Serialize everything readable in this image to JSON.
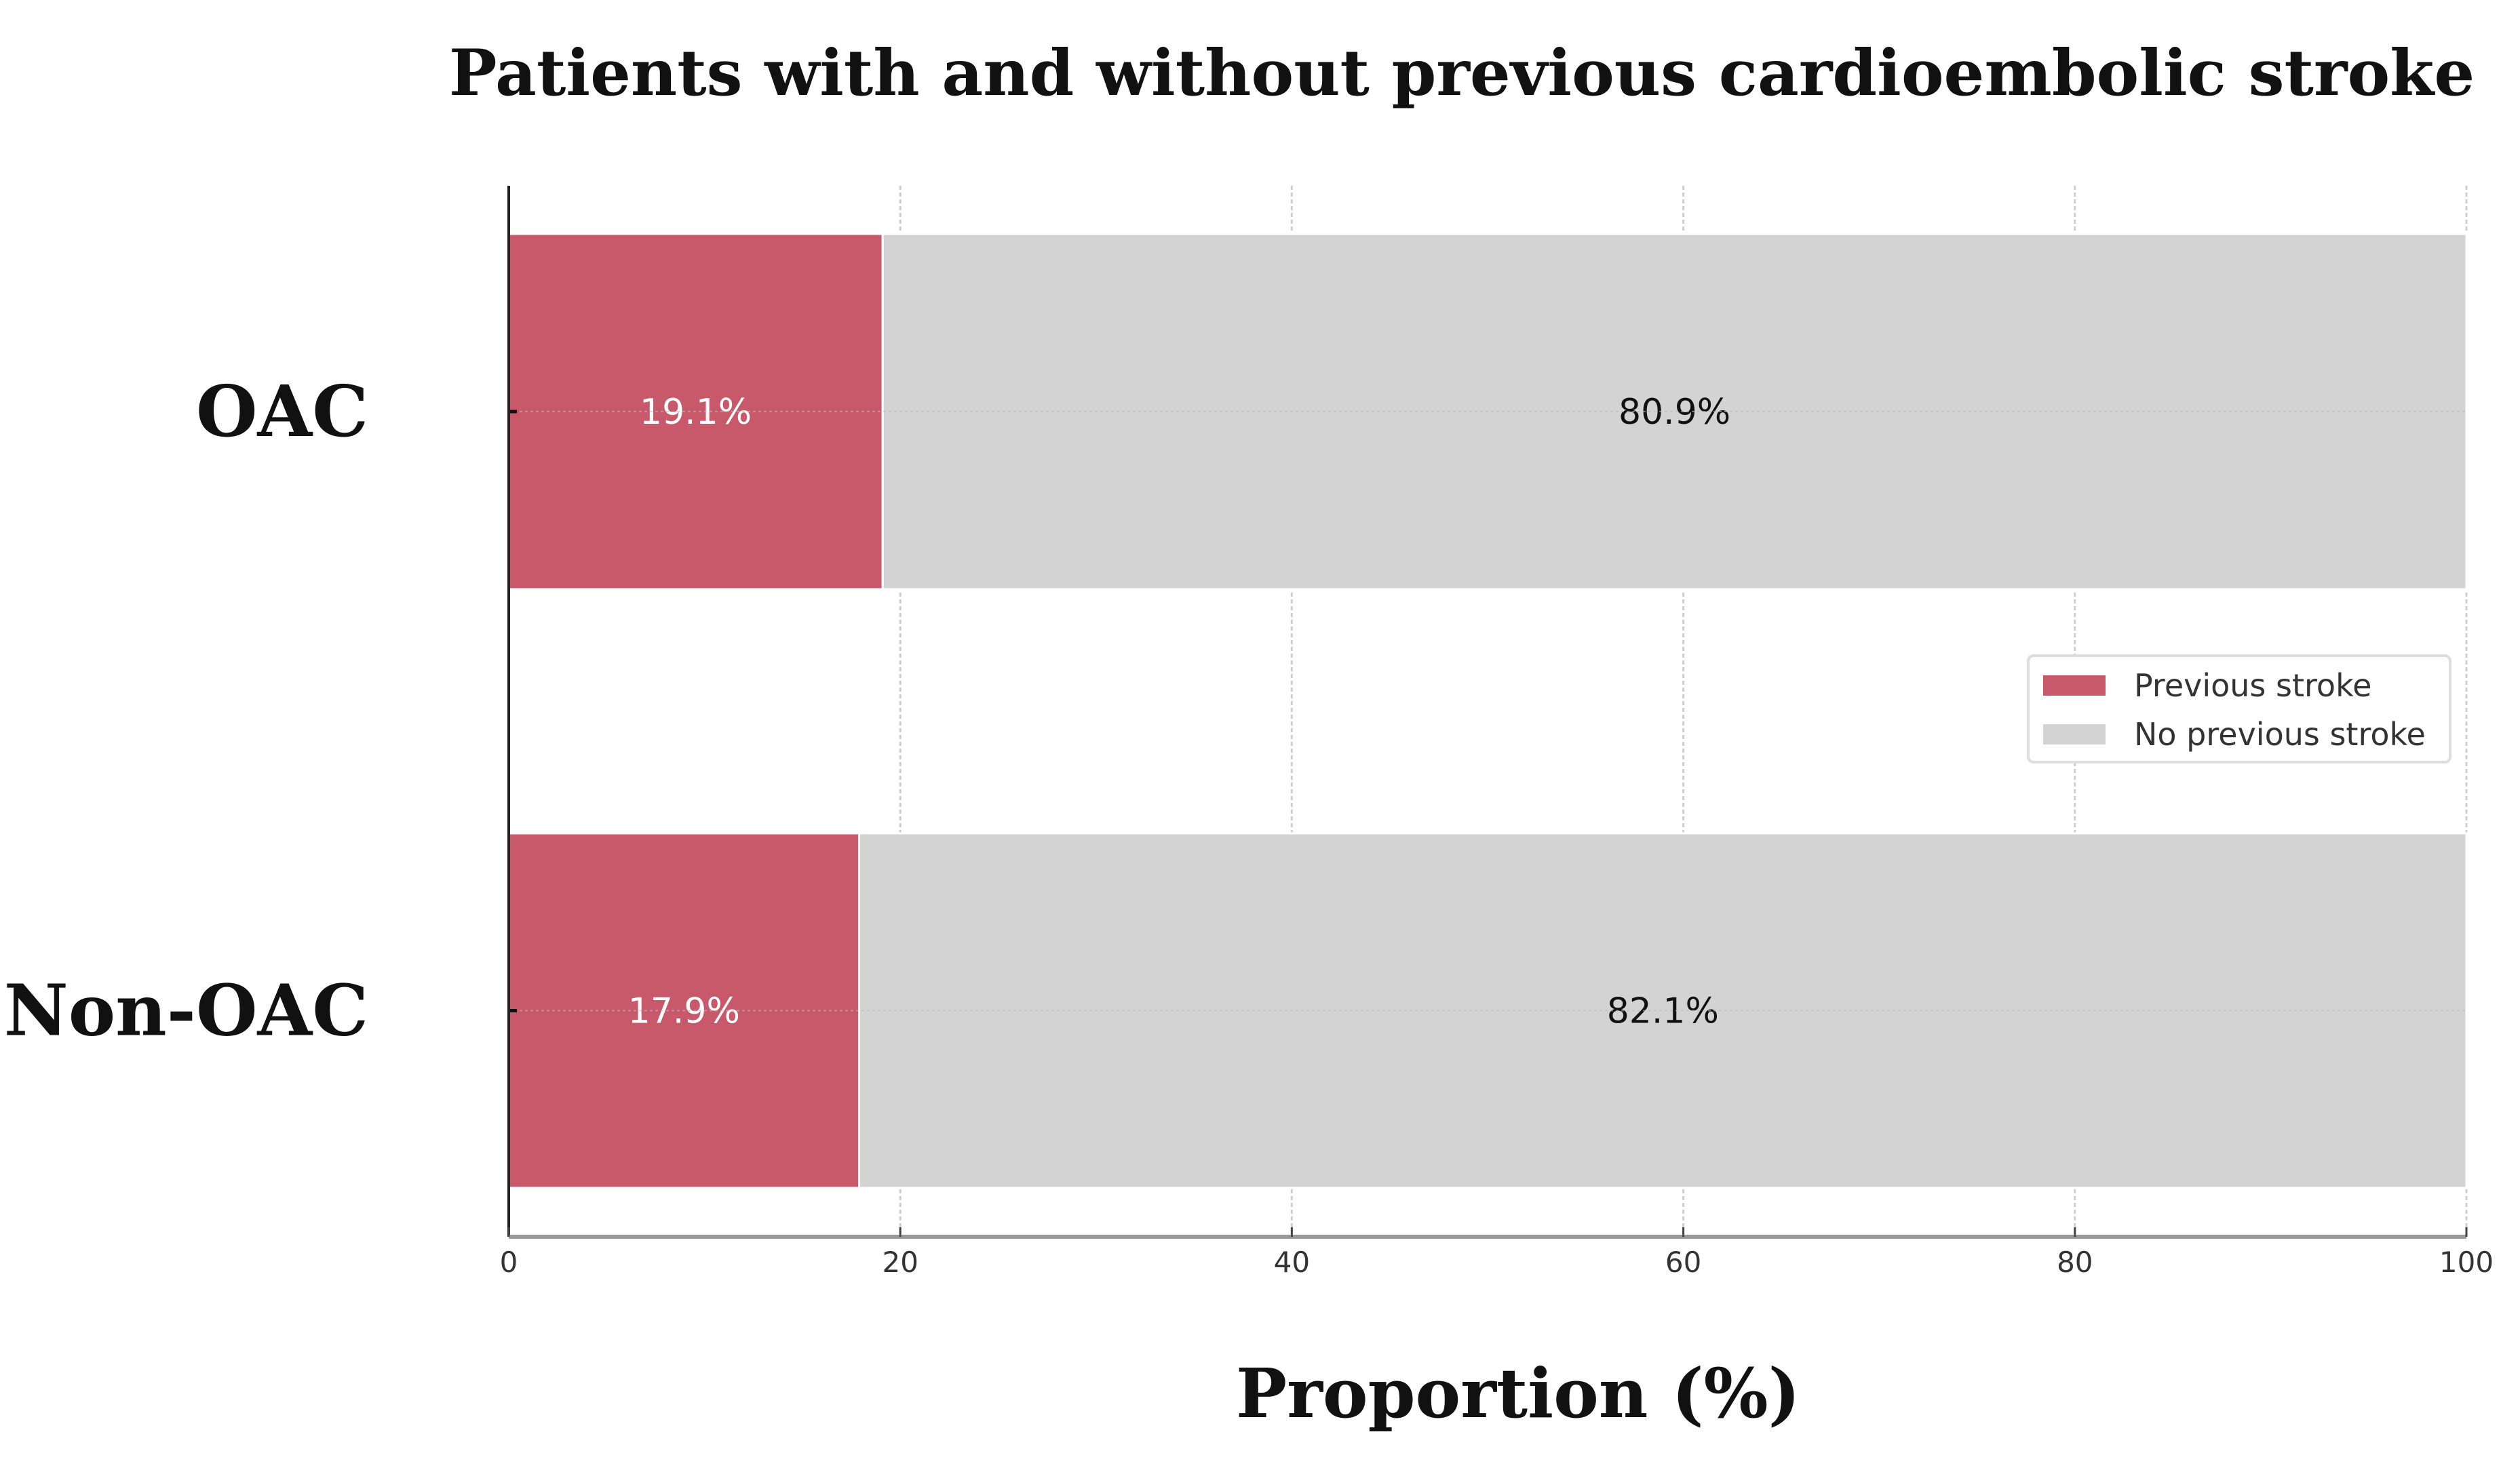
{
  "chart_data": {
    "type": "bar",
    "orientation": "horizontal",
    "stacked": true,
    "title": "Patients with and without previous cardioembolic stroke",
    "xlabel": "Proportion (%)",
    "ylabel": "",
    "xlim": [
      0,
      100
    ],
    "xticks": [
      "0",
      "20",
      "40",
      "60",
      "80",
      "100"
    ],
    "categories": [
      "OAC",
      "Non-OAC"
    ],
    "series": [
      {
        "name": "Previous stroke",
        "values": [
          19.1,
          17.9
        ],
        "labels": [
          "19.1%",
          "17.9%"
        ],
        "color": "#c8596a",
        "label_color": "#ffffff"
      },
      {
        "name": "No previous stroke",
        "values": [
          80.9,
          82.1
        ],
        "labels": [
          "80.9%",
          "82.1%"
        ],
        "color": "#d3d3d3",
        "label_color": "#111111"
      }
    ],
    "grid": true,
    "legend_position": "center-right"
  }
}
